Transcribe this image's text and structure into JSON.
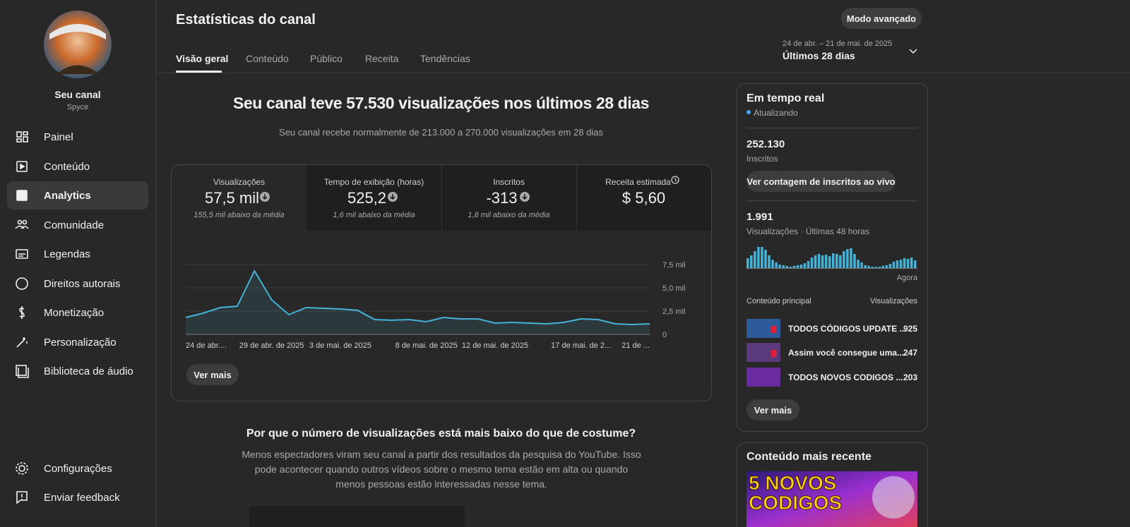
{
  "sidebar": {
    "channel_title": "Seu canal",
    "channel_name": "Spyce",
    "nav": [
      "Painel",
      "Conteúdo",
      "Analytics",
      "Comunidade",
      "Legendas",
      "Direitos autorais",
      "Monetização",
      "Personalização",
      "Biblioteca de áudio"
    ],
    "footer_nav": [
      "Configurações",
      "Enviar feedback"
    ]
  },
  "header": {
    "title": "Estatísticas do canal",
    "advanced_button": "Modo avançado",
    "tabs": [
      "Visão geral",
      "Conteúdo",
      "Público",
      "Receita",
      "Tendências"
    ],
    "date_range": "24 de abr. – 21 de mai. de 2025",
    "period": "Últimos 28 dias"
  },
  "overview": {
    "headline": "Seu canal teve 57.530 visualizações nos últimos 28 dias",
    "subtitle": "Seu canal recebe normalmente de 213.000 a 270.000 visualizações em 28 dias",
    "metrics": [
      {
        "label": "Visualizações",
        "value": "57,5 mil",
        "note": "155,5 mil abaixo da média"
      },
      {
        "label": "Tempo de exibição (horas)",
        "value": "525,2",
        "note": "1,6 mil abaixo da média"
      },
      {
        "label": "Inscritos",
        "value": "-313",
        "note": "1,8 mil abaixo da média"
      },
      {
        "label": "Receita estimada",
        "value": "$ 5,60"
      }
    ],
    "chart": {
      "type": "line",
      "color": "#45b3d8",
      "categories": [
        "24 de abr....",
        null,
        null,
        null,
        null,
        "29 de abr. de 2025",
        null,
        null,
        null,
        "3 de mai. de 2025",
        null,
        null,
        null,
        null,
        "8 de mai. de 2025",
        null,
        null,
        null,
        "12 de mai. de 2025",
        null,
        null,
        null,
        null,
        "17 de mai. de 2...",
        null,
        null,
        null,
        "21 de ..."
      ],
      "values": [
        1820,
        2270,
        2880,
        3030,
        6820,
        3710,
        2120,
        2880,
        2800,
        2730,
        2580,
        1590,
        1520,
        1590,
        1360,
        1820,
        1670,
        1670,
        1210,
        1290,
        1210,
        1140,
        1290,
        1670,
        1590,
        1140,
        1060,
        1140
      ],
      "ylim": [
        0,
        7500
      ],
      "yticks": [
        0,
        {
          "value": 2500,
          "label": "2,5 mil"
        },
        {
          "value": 5000,
          "label": "5,0 mil"
        },
        {
          "value": 7500,
          "label": "7,5 mil"
        }
      ],
      "grid": true
    },
    "more_button": "Ver mais"
  },
  "insight": {
    "title": "Por que o número de visualizações está mais baixo do que de costume?",
    "body": "Menos espectadores viram seu canal a partir dos resultados da pesquisa do YouTube. Isso pode acontecer quando outros vídeos sobre o mesmo tema estão em alta ou quando menos pessoas estão interessadas nesse tema."
  },
  "realtime": {
    "title": "Em tempo real",
    "status": "Atualizando",
    "subscribers": "252.130",
    "subscribers_label": "Inscritos",
    "live_button": "Ver contagem de inscritos ao vivo",
    "views": "1.991",
    "views_label": "Visualizações · Últimas 48 horas",
    "chart": {
      "type": "bar",
      "color": "#45b3d8",
      "values": [
        45,
        58,
        77,
        96,
        96,
        83,
        58,
        38,
        26,
        16,
        13,
        10,
        6,
        10,
        13,
        16,
        22,
        32,
        48,
        58,
        64,
        58,
        61,
        54,
        67,
        64,
        58,
        77,
        86,
        90,
        64,
        38,
        26,
        13,
        10,
        6,
        6,
        6,
        10,
        13,
        19,
        29,
        35,
        38,
        45,
        42,
        48,
        35
      ],
      "end_label": "Agora"
    },
    "top_content_label": "Conteúdo principal",
    "top_views_label": "Visualizações",
    "top_content": [
      {
        "title": "TODOS CÓDIGOS UPDATE ...",
        "views": "925"
      },
      {
        "title": "Assim você consegue uma...",
        "views": "247"
      },
      {
        "title": "TODOS NOVOS CODIGOS ...",
        "views": "203"
      }
    ],
    "more_button": "Ver mais"
  },
  "latest": {
    "title": "Conteúdo mais recente",
    "thumbnail_text": [
      "5 NOVOS",
      "CODIGOS"
    ]
  }
}
